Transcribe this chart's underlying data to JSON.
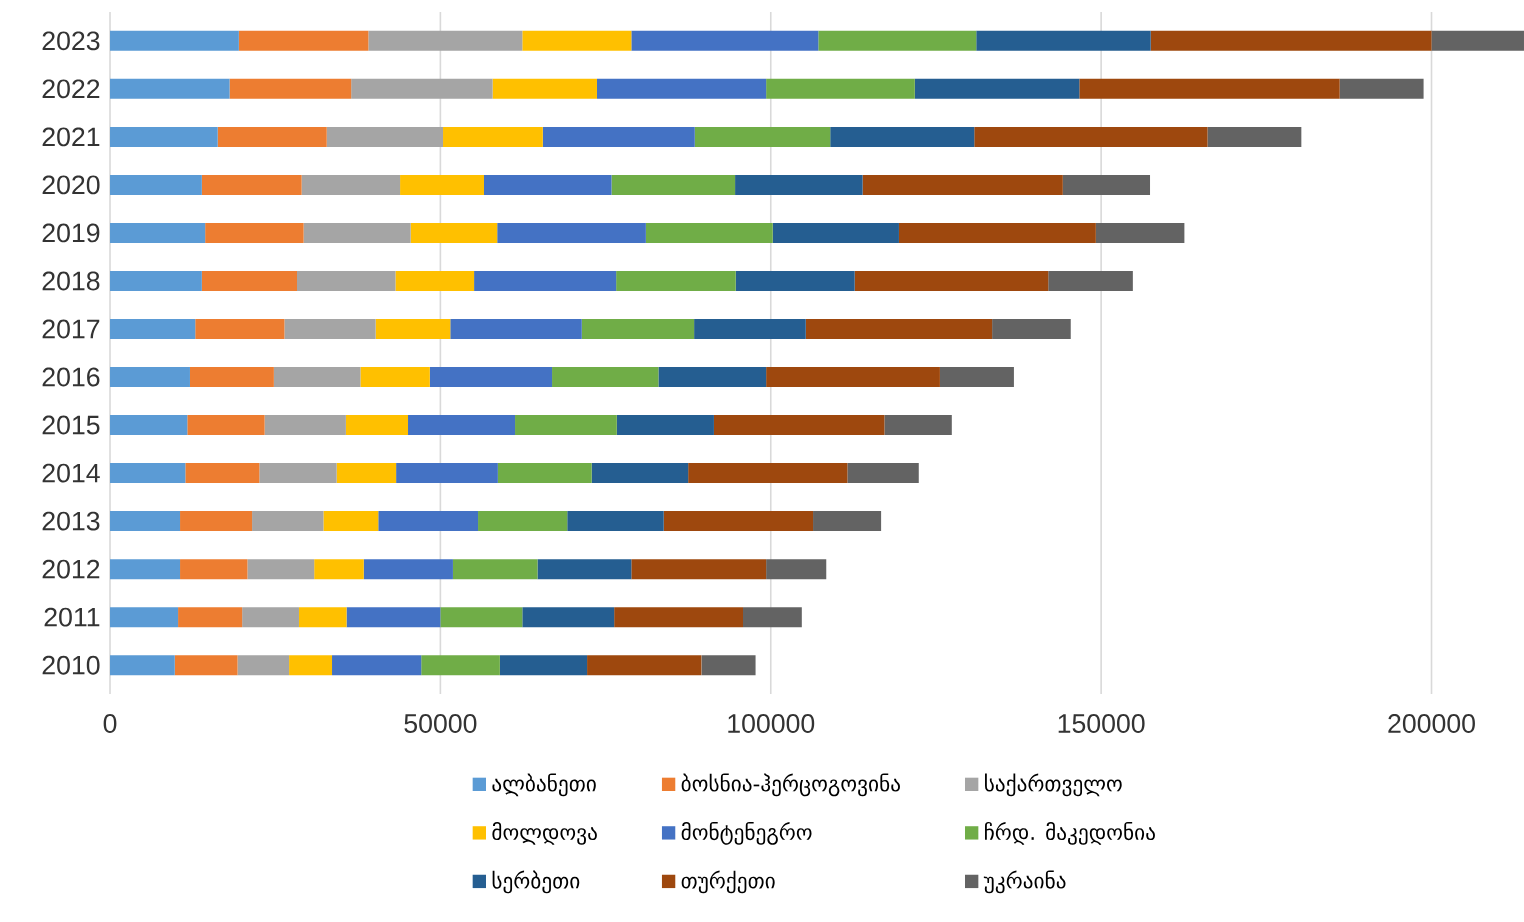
{
  "chart_data": {
    "type": "bar",
    "orientation": "horizontal",
    "stacked": true,
    "grid": "x",
    "legend": "bottom",
    "categories": [
      "2023",
      "2022",
      "2021",
      "2020",
      "2019",
      "2018",
      "2017",
      "2016",
      "2015",
      "2014",
      "2013",
      "2012",
      "2011",
      "2010"
    ],
    "xlim": [
      0,
      214000
    ],
    "xticks": [
      0,
      50000,
      100000,
      150000,
      200000
    ],
    "series": [
      {
        "name": "ალბანეთი",
        "color": "#5b9bd5",
        "values": [
          19500,
          18100,
          16300,
          13900,
          14400,
          13900,
          12900,
          12100,
          11700,
          11400,
          10600,
          10600,
          10300,
          9800
        ]
      },
      {
        "name": "ბოსნია-ჰერცოგოვინა",
        "color": "#ed7d31",
        "values": [
          19600,
          18400,
          16500,
          15100,
          14900,
          14400,
          13500,
          12700,
          11700,
          11200,
          10900,
          10200,
          9700,
          9500
        ]
      },
      {
        "name": "საქართველო",
        "color": "#a5a5a5",
        "values": [
          23300,
          21400,
          17600,
          14900,
          16200,
          14900,
          13800,
          13100,
          12300,
          11700,
          10800,
          10100,
          8600,
          7800
        ]
      },
      {
        "name": "მოლდოვა",
        "color": "#ffc000",
        "values": [
          16500,
          15800,
          15100,
          12700,
          13100,
          11900,
          11300,
          10500,
          9400,
          9000,
          8300,
          7500,
          7200,
          6500
        ]
      },
      {
        "name": "მონტენეგრო",
        "color": "#4472c4",
        "values": [
          28300,
          25600,
          23000,
          19300,
          22500,
          21500,
          19900,
          18500,
          16200,
          15400,
          15100,
          13500,
          14200,
          13500
        ]
      },
      {
        "name": "ჩრდ. მაკედონია",
        "color": "#70ad47",
        "values": [
          23900,
          22500,
          20500,
          18700,
          19200,
          18100,
          17000,
          16100,
          15400,
          14200,
          13500,
          12800,
          12400,
          11900
        ]
      },
      {
        "name": "სერბეთი",
        "color": "#255e91",
        "values": [
          26400,
          24900,
          21800,
          19300,
          19100,
          18000,
          16900,
          16300,
          14700,
          14600,
          14600,
          14200,
          13900,
          13200
        ]
      },
      {
        "name": "თურქეთი",
        "color": "#9e480e",
        "values": [
          42500,
          39400,
          35300,
          30300,
          29800,
          29300,
          28200,
          26300,
          25800,
          24100,
          22600,
          20400,
          19500,
          17300
        ]
      },
      {
        "name": "უკრაინა",
        "color": "#636363",
        "values": [
          14000,
          12700,
          14200,
          13200,
          13400,
          12800,
          11900,
          11200,
          10200,
          10800,
          10300,
          9100,
          8900,
          8200
        ]
      }
    ]
  }
}
